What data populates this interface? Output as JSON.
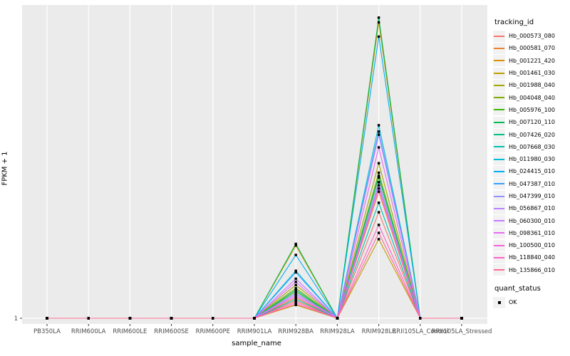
{
  "figure": {
    "background": "#FFFFFF",
    "panel_bg": "#EBEBEB",
    "grid_color": "#FFFFFF",
    "axis_text_color": "#4D4D4D",
    "tick_color": "#333333",
    "point_color": "#000000"
  },
  "axes": {
    "x_title": "sample_name",
    "y_title": "FPKM + 1",
    "y_tick_labels": [
      "1"
    ]
  },
  "legend": {
    "tracking_title": "tracking_id",
    "quant_title": "quant_status",
    "quant_items": [
      {
        "label": "OK",
        "shape": "square",
        "color": "#000000"
      }
    ]
  },
  "chart_data": {
    "type": "line",
    "title": "",
    "xlabel": "sample_name",
    "ylabel": "FPKM + 1",
    "x_categories": [
      "PB350LA",
      "RRIM600LA",
      "RRIM600LE",
      "RRIM600SE",
      "RRIM600PE",
      "RRIM901LA",
      "RRIM928BA",
      "RRIM928LA",
      "RRIM928LE",
      "RRII105LA_Control",
      "RRII105LA_Stressed"
    ],
    "y_axis": {
      "tick_labels": [
        "1"
      ],
      "baseline_value": 1,
      "max_value": 100,
      "note": "Only the value 1 is labeled on the y axis; peak values are estimated in relative units where 1 = baseline and 100 = top of panel."
    },
    "grid": {
      "vertical_per_category": true,
      "horizontal_at_baseline": true
    },
    "legend_position": "right",
    "point_shape": "filled-square",
    "point_status": "OK",
    "series": [
      {
        "name": "Hb_000573_080",
        "color": "#F8766D",
        "values": [
          1,
          1,
          1,
          1,
          1,
          1,
          6.5,
          1,
          34.5,
          1,
          1
        ]
      },
      {
        "name": "Hb_000581_070",
        "color": "#EA8331",
        "values": [
          1,
          1,
          1,
          1,
          1,
          1,
          7.5,
          1,
          41,
          1,
          1
        ]
      },
      {
        "name": "Hb_001221_420",
        "color": "#D89000",
        "values": [
          1,
          1,
          1,
          1,
          1,
          1,
          24,
          1,
          94.5,
          1,
          1
        ]
      },
      {
        "name": "Hb_001461_030",
        "color": "#C09B00",
        "values": [
          1,
          1,
          1,
          1,
          1,
          1,
          5.2,
          1,
          26,
          1,
          1
        ]
      },
      {
        "name": "Hb_001988_040",
        "color": "#A3A500",
        "values": [
          1,
          1,
          1,
          1,
          1,
          1,
          11.5,
          1,
          50,
          1,
          1
        ]
      },
      {
        "name": "Hb_004048_040",
        "color": "#7CAE00",
        "values": [
          1,
          1,
          1,
          1,
          1,
          1,
          10.5,
          1,
          47,
          1,
          1
        ]
      },
      {
        "name": "Hb_005976_100",
        "color": "#39B600",
        "values": [
          1,
          1,
          1,
          1,
          1,
          1,
          9.5,
          1,
          45.5,
          1,
          1
        ]
      },
      {
        "name": "Hb_007120_110",
        "color": "#00BB4E",
        "values": [
          1,
          1,
          1,
          1,
          1,
          1,
          24.5,
          1,
          96,
          1,
          1
        ]
      },
      {
        "name": "Hb_007426_020",
        "color": "#00C087",
        "values": [
          1,
          1,
          1,
          1,
          1,
          1,
          10,
          1,
          46,
          1,
          1
        ]
      },
      {
        "name": "Hb_007668_030",
        "color": "#00C0B2",
        "values": [
          1,
          1,
          1,
          1,
          1,
          1,
          7,
          1,
          37.5,
          1,
          1
        ]
      },
      {
        "name": "Hb_011980_030",
        "color": "#00BCD8",
        "values": [
          1,
          1,
          1,
          1,
          1,
          1,
          16,
          1,
          62,
          1,
          1
        ]
      },
      {
        "name": "Hb_024415_010",
        "color": "#00B0F6",
        "values": [
          1,
          1,
          1,
          1,
          1,
          1,
          21,
          1,
          90,
          1,
          1
        ]
      },
      {
        "name": "Hb_047387_010",
        "color": "#35A2FF",
        "values": [
          1,
          1,
          1,
          1,
          1,
          1,
          15.5,
          1,
          60,
          1,
          1
        ]
      },
      {
        "name": "Hb_047399_010",
        "color": "#9590FF",
        "values": [
          1,
          1,
          1,
          1,
          1,
          1,
          9,
          1,
          44,
          1,
          1
        ]
      },
      {
        "name": "Hb_056867_010",
        "color": "#B983FF",
        "values": [
          1,
          1,
          1,
          1,
          1,
          1,
          8.5,
          1,
          43,
          1,
          1
        ]
      },
      {
        "name": "Hb_060300_010",
        "color": "#C77CFF",
        "values": [
          1,
          1,
          1,
          1,
          1,
          1,
          13.5,
          1,
          59,
          1,
          1
        ]
      },
      {
        "name": "Hb_098361_010",
        "color": "#E76BF3",
        "values": [
          1,
          1,
          1,
          1,
          1,
          1,
          12.5,
          1,
          55,
          1,
          1
        ]
      },
      {
        "name": "Hb_100500_010",
        "color": "#FA62DB",
        "values": [
          1,
          1,
          1,
          1,
          1,
          1,
          8,
          1,
          42,
          1,
          1
        ]
      },
      {
        "name": "Hb_118840_040",
        "color": "#FF61C7",
        "values": [
          1,
          1,
          1,
          1,
          1,
          1,
          6,
          1,
          30.5,
          1,
          1
        ]
      },
      {
        "name": "Hb_135866_010",
        "color": "#FF6B94",
        "values": [
          1,
          1,
          1,
          1,
          1,
          1,
          5.5,
          1,
          28,
          1,
          1
        ]
      }
    ]
  }
}
